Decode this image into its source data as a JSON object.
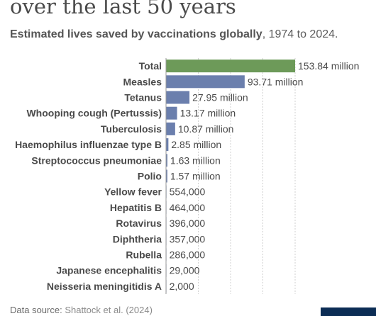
{
  "title": "over the last 50 years",
  "subtitle_bold": "Estimated lives saved by vaccinations globally",
  "subtitle_rest": ", 1974 to 2024.",
  "source_label": "Data source:",
  "source_ref": "Shattock et al. (2024)",
  "colors": {
    "total": "#6d9a59",
    "bar": "#6b7fad",
    "gridline": "#d0d0d0",
    "axis": "#999999"
  },
  "chart_data": {
    "type": "bar",
    "orientation": "horizontal",
    "title": "over the last 50 years",
    "subtitle": "Estimated lives saved by vaccinations globally, 1974 to 2024.",
    "categories": [
      "Total",
      "Measles",
      "Tetanus",
      "Whooping cough (Pertussis)",
      "Tuberculosis",
      "Haemophilus influenzae type B",
      "Streptococcus pneumoniae",
      "Polio",
      "Yellow fever",
      "Hepatitis B",
      "Rotavirus",
      "Diphtheria",
      "Rubella",
      "Japanese encephalitis",
      "Neisseria meningitidis A"
    ],
    "values": [
      153840000,
      93710000,
      27950000,
      13170000,
      10870000,
      2850000,
      1630000,
      1570000,
      554000,
      464000,
      396000,
      357000,
      286000,
      29000,
      2000
    ],
    "value_labels": [
      "153.84 million",
      "93.71 million",
      "27.95 million",
      "13.17 million",
      "10.87 million",
      "2.85 million",
      "1.63 million",
      "1.57 million",
      "554,000",
      "464,000",
      "396,000",
      "357,000",
      "286,000",
      "29,000",
      "2,000"
    ],
    "xlim": [
      0,
      153840000
    ],
    "grid": true
  }
}
